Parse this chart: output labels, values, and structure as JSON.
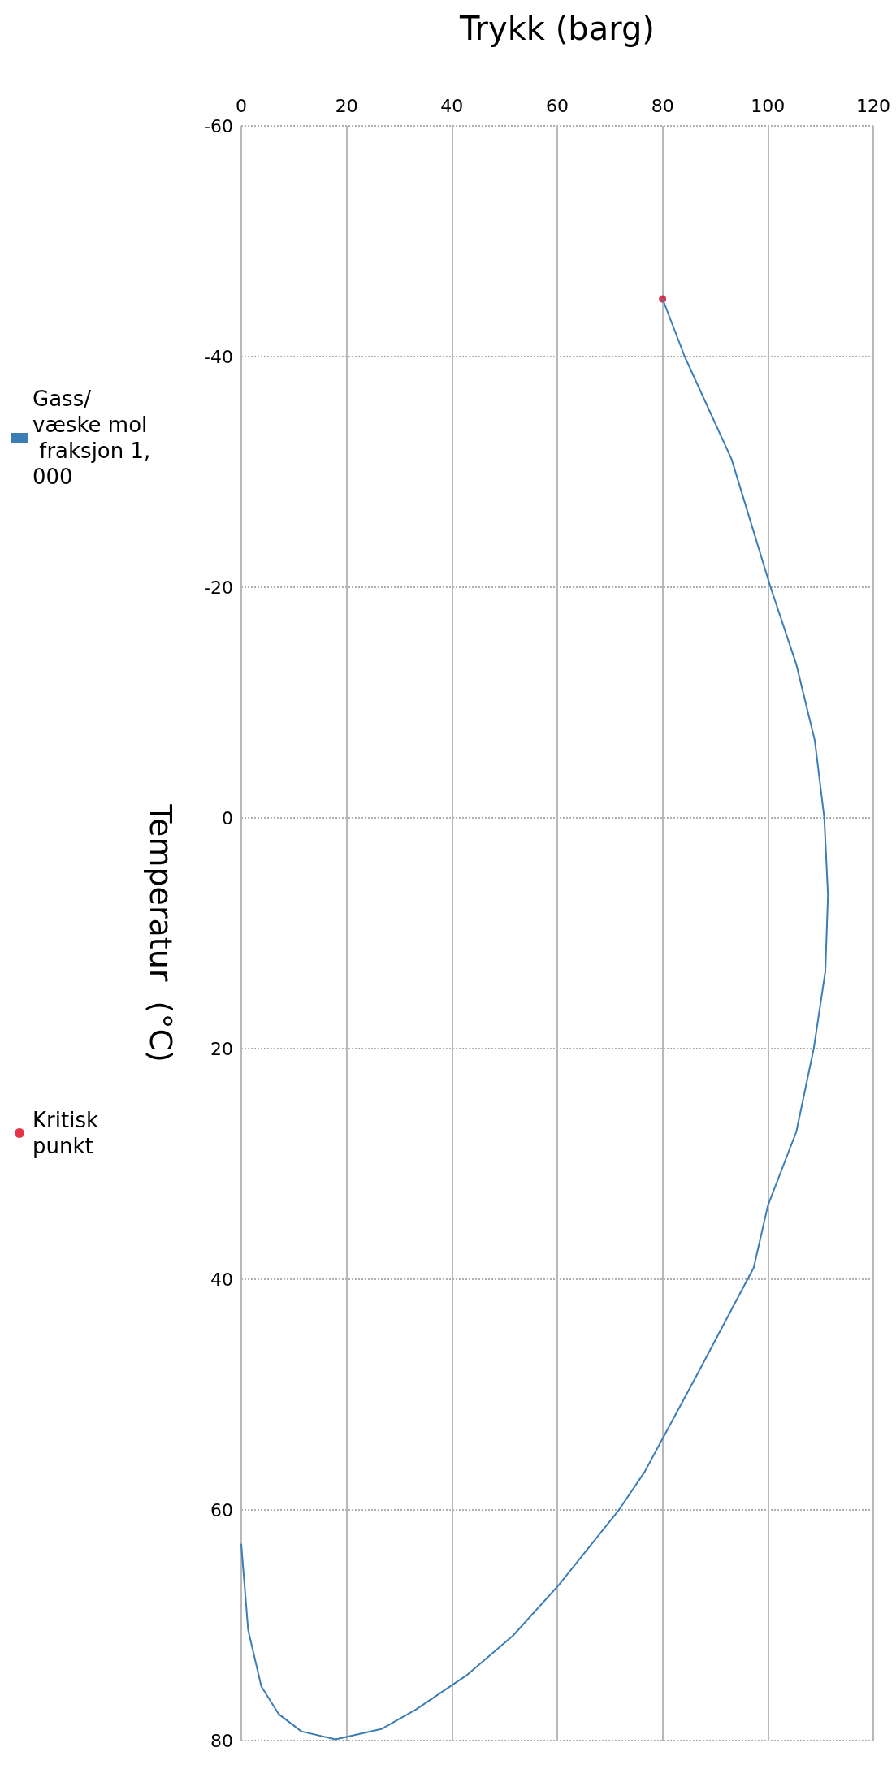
{
  "chart_data": {
    "type": "line",
    "xlabel": "Trykk (barg)",
    "ylabel": "Temperatur  (°C)",
    "xlim": [
      0,
      120
    ],
    "xticks": [
      0,
      20,
      40,
      60,
      80,
      100,
      120
    ],
    "ylim": [
      80,
      -60
    ],
    "yticks": [
      -60,
      -40,
      -20,
      0,
      20,
      40,
      60,
      80
    ],
    "grid": true,
    "legend": "left",
    "series": [
      {
        "name": "Gass/væske mol fraksjon 1,000",
        "type": "line",
        "color": "#3b7db4",
        "marker": "none",
        "line_style": "solid",
        "values": [
          -45,
          -40,
          -31.1,
          -20,
          -13.3,
          -6.7,
          0,
          6.7,
          13.3,
          20,
          27.2,
          33.6,
          39,
          48.4,
          56.7,
          60,
          66.5,
          70.9,
          74.3,
          77.3,
          79,
          79.9,
          79.2,
          77.7,
          75.3,
          70.4,
          63
        ],
        "x": [
          80,
          84.2,
          93.1,
          100.5,
          105.4,
          108.9,
          110.7,
          111.4,
          110.9,
          108.7,
          105.4,
          100,
          97.3,
          86.4,
          76.6,
          71.7,
          60.3,
          51.6,
          42.9,
          33.2,
          26.6,
          17.9,
          11.4,
          7.1,
          3.8,
          1.3,
          0
        ]
      },
      {
        "name": "Kritisk punkt",
        "type": "scatter",
        "color": "#e0001b",
        "marker": "circle",
        "values": [
          -45
        ],
        "x": [
          80
        ]
      }
    ]
  }
}
